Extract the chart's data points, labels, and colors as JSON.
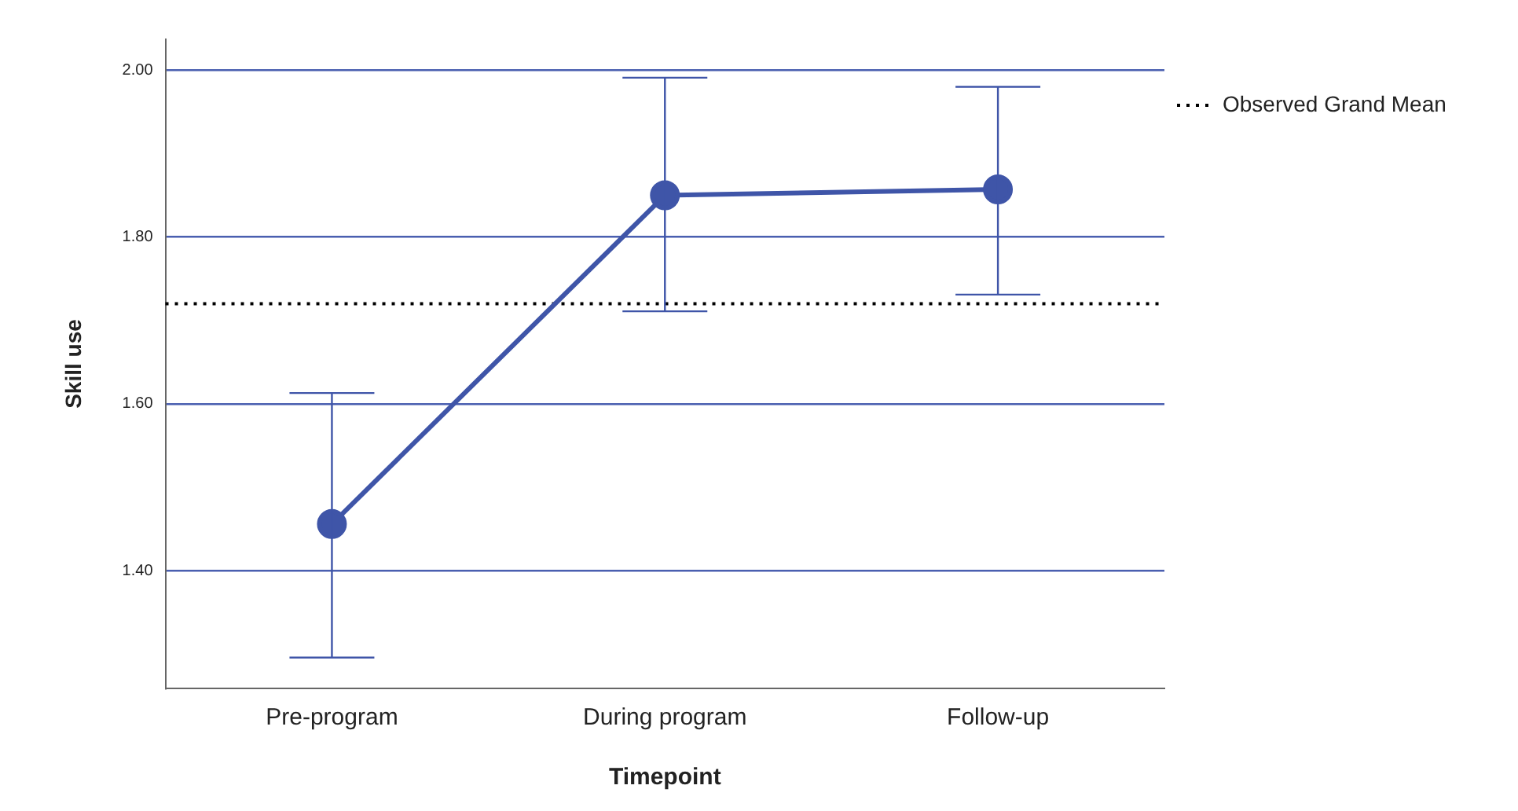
{
  "chart_data": {
    "type": "line",
    "xlabel": "Timepoint",
    "ylabel": "Skill use",
    "categories": [
      "Pre-program",
      "During program",
      "Follow-up"
    ],
    "color": "#3f55a8",
    "values": [
      1.456,
      1.85,
      1.857
    ],
    "errors": [
      [
        1.296,
        1.613
      ],
      [
        1.711,
        1.991
      ],
      [
        1.731,
        1.98
      ]
    ],
    "ylim": [
      1.259,
      2.037
    ],
    "yticks": [
      {
        "value": 1.4,
        "label": "1.40"
      },
      {
        "value": 1.6,
        "label": "1.60"
      },
      {
        "value": 1.8,
        "label": "1.80"
      },
      {
        "value": 2.0,
        "label": "2.00"
      }
    ],
    "grid": "y",
    "marker": "circle",
    "line_style": "solid",
    "legend": "top right",
    "ref_lines": [
      {
        "axis": "y",
        "value": 1.72,
        "label": "Observed Grand Mean",
        "color": "#000000",
        "line_style": "dotted"
      }
    ]
  }
}
